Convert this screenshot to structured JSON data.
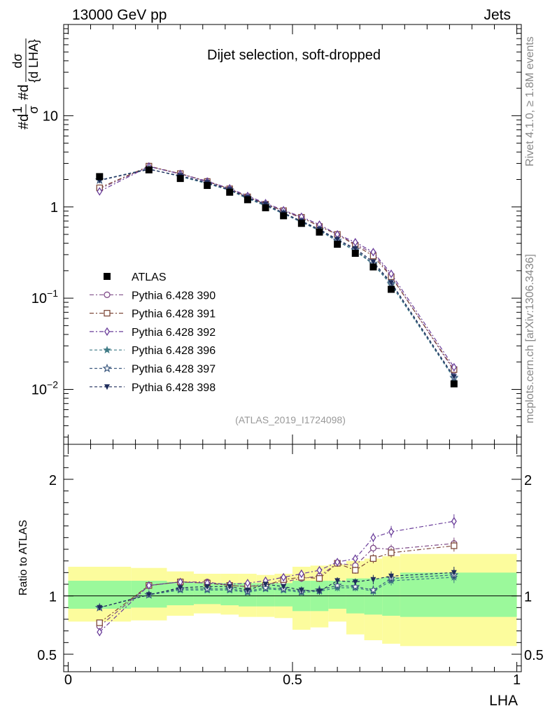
{
  "header": {
    "left": "13000 GeV pp",
    "right": "Jets"
  },
  "side_labels": {
    "upper": "Rivet 4.1.0, ≥ 1.8M events",
    "lower": "mcplots.cern.ch [arXiv:1306.3436]"
  },
  "chart_data": {
    "type": "scatter",
    "title": "Dijet selection, soft-dropped",
    "analysis_tag": "(ATLAS_2019_I1724098)",
    "xlabel": "LHA",
    "ylabel": "1/σ dσ/d LHA",
    "ylabel_parts": {
      "prefix": "#d",
      "frac1_num": "1",
      "frac1_den": "σ",
      "mid": "#d",
      "frac2_num": "dσ",
      "frac2_den": "{d LHA}"
    },
    "yscale": "log",
    "xlim": [
      -0.01,
      1.01
    ],
    "ylim": [
      0.0025,
      100
    ],
    "ratio_ylabel": "Ratio to ATLAS",
    "ratio_ylim": [
      0.35,
      2.3
    ],
    "x_ticks": [
      0,
      0.5,
      1
    ],
    "x_tick_labels": [
      "0",
      "0.5",
      "1"
    ],
    "y_ticks": [
      0.01,
      0.1,
      1,
      10
    ],
    "y_tick_labels": [
      {
        "base": "10",
        "exp": "−2"
      },
      {
        "base": "10",
        "exp": "−1"
      },
      {
        "base": "1",
        "exp": ""
      },
      {
        "base": "10",
        "exp": ""
      }
    ],
    "ratio_ticks": [
      0.5,
      1,
      2
    ],
    "ratio_tick_labels": [
      "0.5",
      "1",
      "2"
    ],
    "legend_position": "center-left",
    "x": [
      0.07,
      0.18,
      0.25,
      0.31,
      0.36,
      0.4,
      0.44,
      0.48,
      0.52,
      0.56,
      0.6,
      0.64,
      0.68,
      0.72,
      0.86
    ],
    "data": {
      "name": "ATLAS",
      "color": "#000000",
      "values": [
        2.15,
        2.55,
        2.05,
        1.72,
        1.45,
        1.2,
        0.98,
        0.8,
        0.66,
        0.53,
        0.39,
        0.31,
        0.22,
        0.125,
        0.0115
      ]
    },
    "bands": {
      "x_edges": [
        0.0,
        0.14,
        0.22,
        0.28,
        0.34,
        0.38,
        0.42,
        0.46,
        0.5,
        0.54,
        0.58,
        0.62,
        0.66,
        0.7,
        0.74,
        1.0
      ],
      "stat_lo": [
        0.89,
        0.9,
        0.92,
        0.93,
        0.92,
        0.91,
        0.91,
        0.91,
        0.87,
        0.87,
        0.89,
        0.85,
        0.84,
        0.83,
        0.82
      ],
      "stat_hi": [
        1.13,
        1.13,
        1.12,
        1.11,
        1.11,
        1.11,
        1.11,
        1.11,
        1.13,
        1.13,
        1.13,
        1.15,
        1.15,
        1.16,
        1.2
      ],
      "tot_lo": [
        0.78,
        0.79,
        0.83,
        0.85,
        0.84,
        0.82,
        0.82,
        0.81,
        0.71,
        0.73,
        0.78,
        0.67,
        0.62,
        0.59,
        0.57
      ],
      "tot_hi": [
        1.25,
        1.24,
        1.21,
        1.19,
        1.19,
        1.19,
        1.18,
        1.19,
        1.25,
        1.26,
        1.27,
        1.3,
        1.32,
        1.34,
        1.36
      ],
      "stat_color": "#9bf99b",
      "tot_color": "#fcfc9d"
    },
    "series": [
      {
        "name": "Pythia 6.428 390",
        "color": "#7f4a88",
        "marker": "circle-open",
        "dash": "6,3,2,3",
        "values": [
          1.58,
          2.78,
          2.3,
          1.92,
          1.58,
          1.29,
          1.08,
          0.9,
          0.76,
          0.62,
          0.5,
          0.39,
          0.31,
          0.175,
          0.016
        ],
        "ratio": [
          0.74,
          1.09,
          1.12,
          1.12,
          1.09,
          1.08,
          1.1,
          1.12,
          1.15,
          1.17,
          1.28,
          1.26,
          1.41,
          1.4,
          1.45
        ],
        "ratio_err": [
          0.02,
          0.02,
          0.02,
          0.02,
          0.02,
          0.02,
          0.02,
          0.02,
          0.03,
          0.03,
          0.03,
          0.03,
          0.04,
          0.04,
          0.05
        ]
      },
      {
        "name": "Pythia 6.428 391",
        "color": "#7f4a3a",
        "marker": "square-open",
        "dash": "6,3,2,3",
        "values": [
          1.62,
          2.8,
          2.32,
          1.9,
          1.58,
          1.29,
          1.07,
          0.91,
          0.77,
          0.61,
          0.5,
          0.38,
          0.29,
          0.172,
          0.0165
        ],
        "ratio": [
          0.77,
          1.09,
          1.12,
          1.11,
          1.09,
          1.08,
          1.09,
          1.14,
          1.16,
          1.15,
          1.28,
          1.22,
          1.32,
          1.37,
          1.43
        ],
        "ratio_err": [
          0.02,
          0.02,
          0.02,
          0.02,
          0.02,
          0.02,
          0.02,
          0.02,
          0.03,
          0.03,
          0.03,
          0.03,
          0.04,
          0.04,
          0.05
        ]
      },
      {
        "name": "Pythia 6.428 392",
        "color": "#6a3d9a",
        "marker": "diamond-open",
        "dash": "6,3,2,3",
        "values": [
          1.48,
          2.78,
          2.3,
          1.9,
          1.6,
          1.32,
          1.1,
          0.92,
          0.78,
          0.64,
          0.5,
          0.41,
          0.32,
          0.185,
          0.0175
        ],
        "ratio": [
          0.69,
          1.09,
          1.12,
          1.11,
          1.1,
          1.11,
          1.13,
          1.16,
          1.19,
          1.22,
          1.29,
          1.32,
          1.5,
          1.55,
          1.64
        ],
        "ratio_err": [
          0.02,
          0.02,
          0.02,
          0.02,
          0.02,
          0.02,
          0.02,
          0.02,
          0.03,
          0.03,
          0.03,
          0.03,
          0.04,
          0.05,
          0.06
        ]
      },
      {
        "name": "Pythia 6.428 396",
        "color": "#3e7a85",
        "marker": "star-filled",
        "dash": "4,3",
        "values": [
          1.97,
          2.62,
          2.15,
          1.8,
          1.52,
          1.23,
          1.03,
          0.84,
          0.68,
          0.55,
          0.42,
          0.33,
          0.235,
          0.14,
          0.0132
        ],
        "ratio": [
          0.9,
          1.01,
          1.05,
          1.05,
          1.05,
          1.03,
          1.06,
          1.05,
          1.03,
          1.04,
          1.07,
          1.07,
          1.04,
          1.13,
          1.16
        ],
        "ratio_err": [
          0.02,
          0.02,
          0.02,
          0.02,
          0.02,
          0.02,
          0.02,
          0.02,
          0.03,
          0.03,
          0.03,
          0.03,
          0.04,
          0.04,
          0.05
        ]
      },
      {
        "name": "Pythia 6.428 397",
        "color": "#3d5a80",
        "marker": "star-open",
        "dash": "4,3",
        "values": [
          1.97,
          2.6,
          2.18,
          1.82,
          1.53,
          1.25,
          1.05,
          0.85,
          0.69,
          0.56,
          0.43,
          0.34,
          0.24,
          0.145,
          0.0135
        ],
        "ratio": [
          0.9,
          1.01,
          1.06,
          1.06,
          1.06,
          1.04,
          1.07,
          1.06,
          1.04,
          1.05,
          1.09,
          1.08,
          1.05,
          1.15,
          1.18
        ],
        "ratio_err": [
          0.02,
          0.02,
          0.02,
          0.02,
          0.02,
          0.02,
          0.02,
          0.02,
          0.03,
          0.03,
          0.03,
          0.03,
          0.04,
          0.04,
          0.05
        ]
      },
      {
        "name": "Pythia 6.428 398",
        "color": "#1f2d5c",
        "marker": "triangle-down-filled",
        "dash": "4,3",
        "values": [
          1.95,
          2.58,
          2.2,
          1.85,
          1.55,
          1.27,
          1.07,
          0.86,
          0.7,
          0.57,
          0.44,
          0.35,
          0.25,
          0.148,
          0.0138
        ],
        "ratio": [
          0.9,
          1.01,
          1.07,
          1.08,
          1.08,
          1.05,
          1.1,
          1.08,
          1.05,
          1.04,
          1.13,
          1.12,
          1.14,
          1.17,
          1.2
        ],
        "ratio_err": [
          0.02,
          0.02,
          0.02,
          0.02,
          0.02,
          0.02,
          0.02,
          0.02,
          0.03,
          0.03,
          0.03,
          0.03,
          0.04,
          0.04,
          0.05
        ]
      }
    ]
  }
}
